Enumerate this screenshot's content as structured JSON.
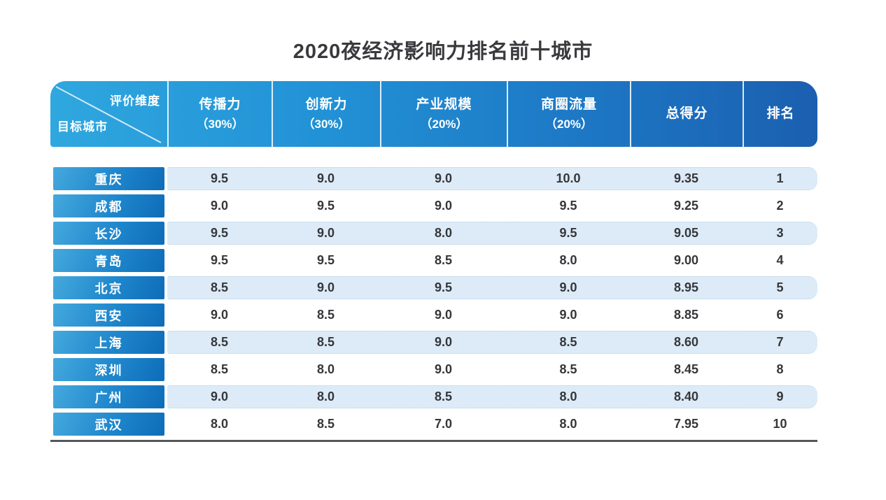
{
  "title": "2020夜经济影响力排名前十城市",
  "colors": {
    "header_gradient_left": "#2fa7df",
    "header_gradient_right": "#1b5fb0",
    "city_cell_gradient_left": "#45a9dd",
    "city_cell_gradient_right": "#0e6cb8",
    "tint_row_bg": "#dcebf7",
    "tint_row_border": "#b9d1e3",
    "value_text": "#36363a",
    "bottom_rule": "#55565a"
  },
  "table": {
    "corner": {
      "top_label": "评价维度",
      "bottom_label": "目标城市"
    },
    "columns": [
      {
        "label": "传播力",
        "weight": "（30%）"
      },
      {
        "label": "创新力",
        "weight": "（30%）"
      },
      {
        "label": "产业规模",
        "weight": "（20%）"
      },
      {
        "label": "商圈流量",
        "weight": "（20%）"
      },
      {
        "label": "总得分",
        "weight": ""
      },
      {
        "label": "排名",
        "weight": ""
      }
    ],
    "rows": [
      {
        "city": "重庆",
        "values": [
          "9.5",
          "9.0",
          "9.0",
          "10.0",
          "9.35",
          "1"
        ]
      },
      {
        "city": "成都",
        "values": [
          "9.0",
          "9.5",
          "9.0",
          "9.5",
          "9.25",
          "2"
        ]
      },
      {
        "city": "长沙",
        "values": [
          "9.5",
          "9.0",
          "8.0",
          "9.5",
          "9.05",
          "3"
        ]
      },
      {
        "city": "青岛",
        "values": [
          "9.5",
          "9.5",
          "8.5",
          "8.0",
          "9.00",
          "4"
        ]
      },
      {
        "city": "北京",
        "values": [
          "8.5",
          "9.0",
          "9.5",
          "9.0",
          "8.95",
          "5"
        ]
      },
      {
        "city": "西安",
        "values": [
          "9.0",
          "8.5",
          "9.0",
          "9.0",
          "8.85",
          "6"
        ]
      },
      {
        "city": "上海",
        "values": [
          "8.5",
          "8.5",
          "9.0",
          "8.5",
          "8.60",
          "7"
        ]
      },
      {
        "city": "深圳",
        "values": [
          "8.5",
          "8.0",
          "9.0",
          "8.5",
          "8.45",
          "8"
        ]
      },
      {
        "city": "广州",
        "values": [
          "9.0",
          "8.0",
          "8.5",
          "8.0",
          "8.40",
          "9"
        ]
      },
      {
        "city": "武汉",
        "values": [
          "8.0",
          "8.5",
          "7.0",
          "8.0",
          "7.95",
          "10"
        ]
      }
    ]
  },
  "chart_data": {
    "type": "table",
    "title": "2020夜经济影响力排名前十城市",
    "columns": [
      "目标城市",
      "传播力（30%）",
      "创新力（30%）",
      "产业规模（20%）",
      "商圈流量（20%）",
      "总得分",
      "排名"
    ],
    "rows": [
      [
        "重庆",
        9.5,
        9.0,
        9.0,
        10.0,
        9.35,
        1
      ],
      [
        "成都",
        9.0,
        9.5,
        9.0,
        9.5,
        9.25,
        2
      ],
      [
        "长沙",
        9.5,
        9.0,
        8.0,
        9.5,
        9.05,
        3
      ],
      [
        "青岛",
        9.5,
        9.5,
        8.5,
        8.0,
        9.0,
        4
      ],
      [
        "北京",
        8.5,
        9.0,
        9.5,
        9.0,
        8.95,
        5
      ],
      [
        "西安",
        9.0,
        8.5,
        9.0,
        9.0,
        8.85,
        6
      ],
      [
        "上海",
        8.5,
        8.5,
        9.0,
        8.5,
        8.6,
        7
      ],
      [
        "深圳",
        8.5,
        8.0,
        9.0,
        8.5,
        8.45,
        8
      ],
      [
        "广州",
        9.0,
        8.0,
        8.5,
        8.0,
        8.4,
        9
      ],
      [
        "武汉",
        8.0,
        8.5,
        7.0,
        8.0,
        7.95,
        10
      ]
    ]
  }
}
